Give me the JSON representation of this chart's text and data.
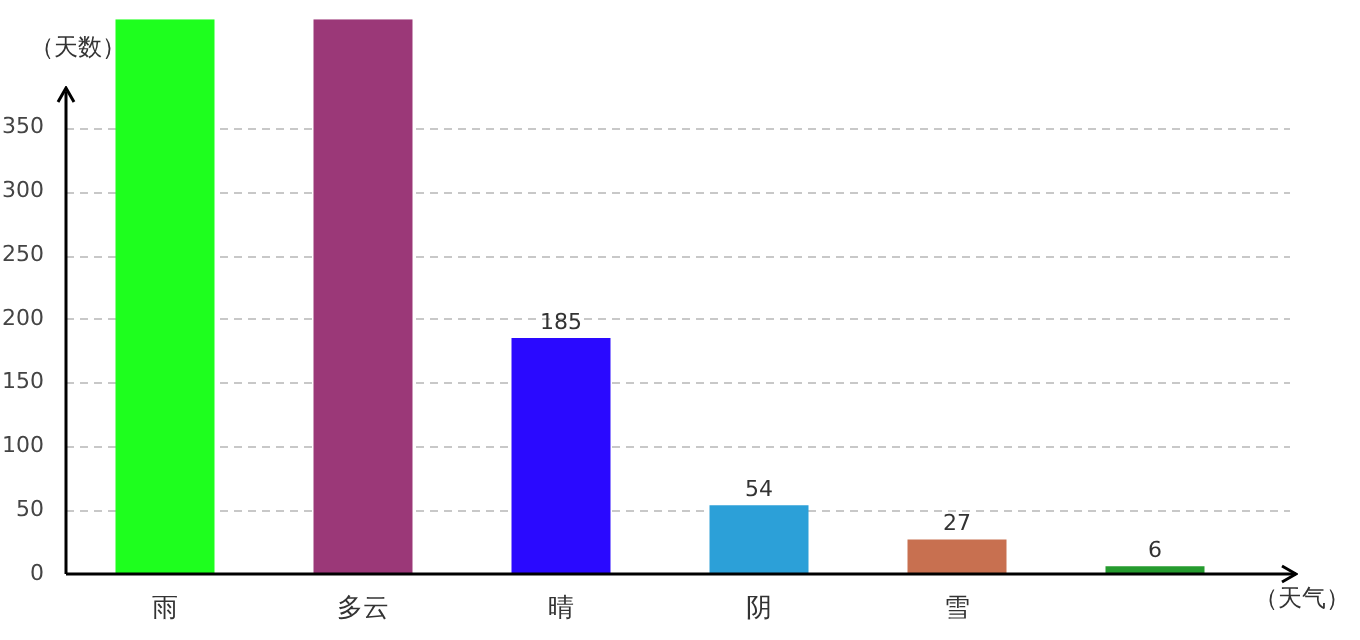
{
  "chart_data": {
    "type": "bar",
    "xlabel": "（天气）",
    "ylabel": "（天数）",
    "categories": [
      "雨",
      "多云",
      "晴",
      "阴",
      "雪",
      null
    ],
    "values": [
      435,
      435,
      185,
      54,
      27,
      6
    ],
    "value_labels": [
      null,
      null,
      "185",
      "54",
      "27",
      "6"
    ],
    "colors": [
      "#1eff1e",
      "#9b3878",
      "#2a09ff",
      "#2ca0d8",
      "#c87050",
      "#259b2e"
    ],
    "ylim": [
      0,
      435
    ],
    "yticks": [
      0,
      50,
      100,
      150,
      200,
      250,
      300,
      350
    ],
    "grid": "y",
    "legend": false
  }
}
